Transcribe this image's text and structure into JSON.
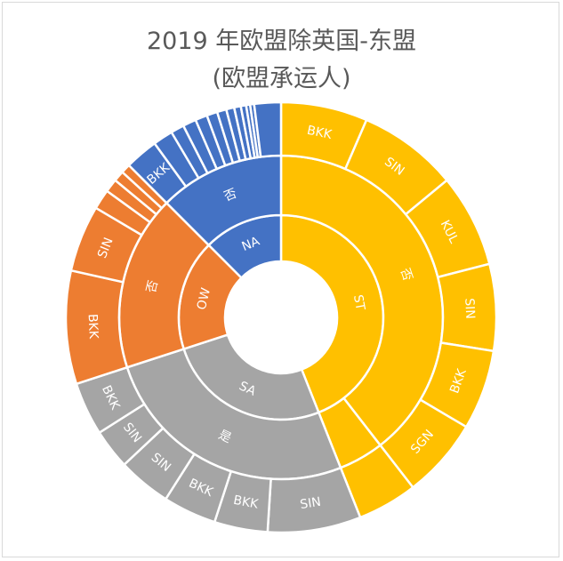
{
  "chart_data": {
    "type": "sunburst",
    "title": "2019 年欧盟除英国-东盟",
    "subtitle": "(欧盟承运人)",
    "colors": {
      "ST": "#FFC000",
      "SA": "#A5A5A5",
      "OW": "#ED7D31",
      "NA": "#4472C4"
    },
    "root": [
      {
        "label": "ST",
        "color": "ST",
        "value": 44,
        "children": [
          {
            "label": "否",
            "value": 39.5,
            "children": [
              {
                "label": "BKK",
                "value": 6.5
              },
              {
                "label": "SIN",
                "value": 7.5
              },
              {
                "label": "KUL",
                "value": 7
              },
              {
                "label": "SIN",
                "value": 6.5
              },
              {
                "label": "BKK",
                "value": 6
              },
              {
                "label": "SGN",
                "value": 6
              }
            ]
          },
          {
            "label": "",
            "value": 4.5,
            "children": [
              {
                "label": "",
                "value": 4.5
              }
            ]
          }
        ]
      },
      {
        "label": "SA",
        "color": "SA",
        "value": 26,
        "children": [
          {
            "label": "是",
            "value": 26,
            "children": [
              {
                "label": "SIN",
                "value": 7
              },
              {
                "label": "BKK",
                "value": 4
              },
              {
                "label": "BKK",
                "value": 4
              },
              {
                "label": "SIN",
                "value": 4
              },
              {
                "label": "SIN",
                "value": 3
              },
              {
                "label": "BKK",
                "value": 4
              }
            ]
          }
        ]
      },
      {
        "label": "OW",
        "color": "OW",
        "value": 17.5,
        "children": [
          {
            "label": "否",
            "value": 17.5,
            "children": [
              {
                "label": "BKK",
                "value": 8.5
              },
              {
                "label": "SIN",
                "value": 5
              },
              {
                "label": "",
                "value": 1.5
              },
              {
                "label": "",
                "value": 1
              },
              {
                "label": "",
                "value": 0.8
              },
              {
                "label": "",
                "value": 0.7
              }
            ]
          }
        ]
      },
      {
        "label": "NA",
        "color": "NA",
        "value": 12.5,
        "children": [
          {
            "label": "否",
            "value": 12.5,
            "children": [
              {
                "label": "BKK",
                "value": 2.5
              },
              {
                "label": "",
                "value": 1.5
              },
              {
                "label": "",
                "value": 1
              },
              {
                "label": "",
                "value": 1
              },
              {
                "label": "",
                "value": 0.9
              },
              {
                "label": "",
                "value": 0.8
              },
              {
                "label": "",
                "value": 0.7
              },
              {
                "label": "",
                "value": 0.6
              },
              {
                "label": "",
                "value": 0.5
              },
              {
                "label": "",
                "value": 0.4
              },
              {
                "label": "",
                "value": 0.3
              },
              {
                "label": "",
                "value": 0.3
              },
              {
                "label": "",
                "value": 2
              }
            ]
          }
        ]
      }
    ]
  }
}
